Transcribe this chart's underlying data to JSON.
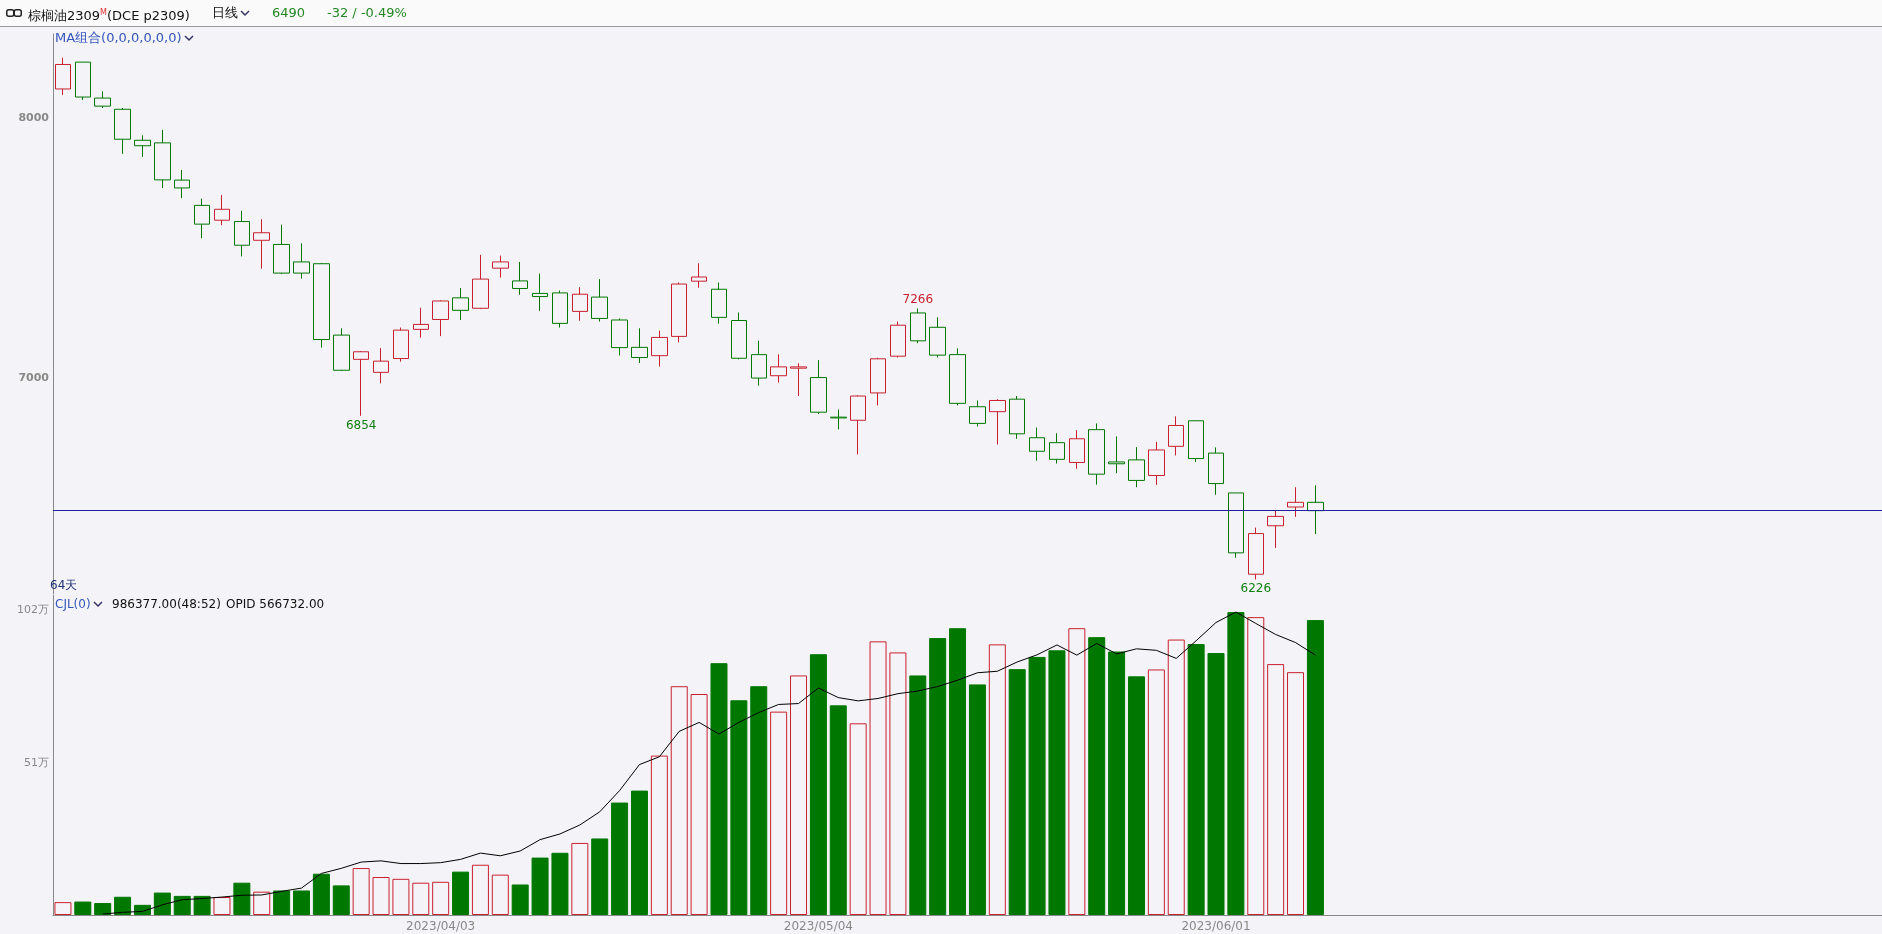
{
  "chart_data": [
    {
      "type": "candlestick",
      "title": "棕榈油2309$^{M}$(DCE p2309)",
      "annotations": [
        "日线",
        "6490",
        "-32 / -0.49%",
        "MA组合(0,0,0,0,0,0)",
        "64天",
        {
          "text": "6854",
          "y": 6854
        },
        {
          "text": "7266",
          "y": 7266
        },
        {
          "text": "6226",
          "y": 6226
        }
      ],
      "categories": [
        null,
        null,
        null,
        null,
        null,
        null,
        null,
        null,
        null,
        null,
        null,
        null,
        null,
        null,
        null,
        null,
        null,
        null,
        null,
        "2023/04/03",
        null,
        null,
        null,
        null,
        null,
        null,
        null,
        null,
        null,
        null,
        null,
        null,
        null,
        null,
        null,
        null,
        null,
        null,
        "2023/05/04",
        null,
        null,
        null,
        null,
        null,
        null,
        null,
        null,
        null,
        null,
        null,
        null,
        null,
        null,
        null,
        null,
        null,
        null,
        null,
        "2023/06/01",
        null,
        null,
        null,
        null,
        null
      ],
      "ohlc": [
        [
          8109,
          8229,
          8086,
          8203
        ],
        [
          8212,
          8212,
          8067,
          8078
        ],
        [
          8074,
          8100,
          8036,
          8043
        ],
        [
          8031,
          8036,
          7860,
          7916
        ],
        [
          7912,
          7931,
          7848,
          7891
        ],
        [
          7902,
          7952,
          7729,
          7760
        ],
        [
          7759,
          7798,
          7690,
          7729
        ],
        [
          7662,
          7688,
          7536,
          7590
        ],
        [
          7605,
          7702,
          7586,
          7647
        ],
        [
          7600,
          7641,
          7466,
          7509
        ],
        [
          7528,
          7609,
          7419,
          7557
        ],
        [
          7512,
          7588,
          7398,
          7402
        ],
        [
          7445,
          7516,
          7381,
          7402
        ],
        [
          7438,
          7441,
          7116,
          7147
        ],
        [
          7164,
          7190,
          7026,
          7029
        ],
        [
          7071,
          7103,
          6854,
          7100
        ],
        [
          7021,
          7114,
          6979,
          7064
        ],
        [
          7074,
          7193,
          7062,
          7183
        ],
        [
          7186,
          7269,
          7154,
          7205
        ],
        [
          7224,
          7298,
          7160,
          7295
        ],
        [
          7307,
          7345,
          7222,
          7259
        ],
        [
          7267,
          7472,
          7264,
          7379
        ],
        [
          7421,
          7469,
          7385,
          7445
        ],
        [
          7372,
          7445,
          7319,
          7343
        ],
        [
          7324,
          7400,
          7257,
          7312
        ],
        [
          7326,
          7335,
          7193,
          7209
        ],
        [
          7255,
          7348,
          7219,
          7321
        ],
        [
          7310,
          7379,
          7216,
          7228
        ],
        [
          7222,
          7228,
          7086,
          7116
        ],
        [
          7117,
          7190,
          7057,
          7078
        ],
        [
          7085,
          7181,
          7043,
          7155
        ],
        [
          7159,
          7366,
          7136,
          7360
        ],
        [
          7371,
          7440,
          7346,
          7387
        ],
        [
          7340,
          7366,
          7208,
          7232
        ],
        [
          7220,
          7251,
          7071,
          7075
        ],
        [
          7089,
          7142,
          6970,
          6999
        ],
        [
          7008,
          7090,
          6982,
          7042
        ],
        [
          7037,
          7056,
          6930,
          7042
        ],
        [
          7001,
          7068,
          6861,
          6868
        ],
        [
          6849,
          6878,
          6802,
          6846
        ],
        [
          6837,
          6933,
          6706,
          6930
        ],
        [
          6942,
          7077,
          6894,
          7073
        ],
        [
          7083,
          7216,
          7078,
          7202
        ],
        [
          7249,
          7266,
          7133,
          7142
        ],
        [
          7194,
          7232,
          7078,
          7087
        ],
        [
          7089,
          7113,
          6894,
          6902
        ],
        [
          6889,
          6913,
          6813,
          6825
        ],
        [
          6870,
          6918,
          6744,
          6913
        ],
        [
          6918,
          6930,
          6766,
          6785
        ],
        [
          6770,
          6809,
          6682,
          6718
        ],
        [
          6751,
          6787,
          6671,
          6687
        ],
        [
          6675,
          6799,
          6651,
          6766
        ],
        [
          6801,
          6825,
          6590,
          6630
        ],
        [
          6677,
          6775,
          6634,
          6670
        ],
        [
          6685,
          6734,
          6580,
          6606
        ],
        [
          6625,
          6754,
          6589,
          6723
        ],
        [
          6737,
          6852,
          6702,
          6817
        ],
        [
          6835,
          6835,
          6677,
          6690
        ],
        [
          6711,
          6733,
          6551,
          6594
        ],
        [
          6558,
          6558,
          6309,
          6328
        ],
        [
          6246,
          6425,
          6226,
          6402
        ],
        [
          6432,
          6493,
          6347,
          6468
        ],
        [
          6504,
          6580,
          6466,
          6522
        ],
        [
          6522,
          6587,
          6400,
          6490
        ]
      ],
      "colors": [
        "#c8202e",
        "#007800",
        "#007800",
        "#007800",
        "#007800",
        "#007800",
        "#007800",
        "#007800",
        "#c8202e",
        "#007800",
        "#c8202e",
        "#007800",
        "#007800",
        "#007800",
        "#007800",
        "#c8202e",
        "#c8202e",
        "#c8202e",
        "#c8202e",
        "#c8202e",
        "#007800",
        "#c8202e",
        "#c8202e",
        "#007800",
        "#007800",
        "#007800",
        "#c8202e",
        "#007800",
        "#007800",
        "#007800",
        "#c8202e",
        "#c8202e",
        "#c8202e",
        "#007800",
        "#007800",
        "#007800",
        "#c8202e",
        "#c8202e",
        "#007800",
        "#007800",
        "#c8202e",
        "#c8202e",
        "#c8202e",
        "#007800",
        "#007800",
        "#007800",
        "#007800",
        "#c8202e",
        "#007800",
        "#007800",
        "#007800",
        "#c8202e",
        "#007800",
        "#007800",
        "#007800",
        "#c8202e",
        "#c8202e",
        "#007800",
        "#007800",
        "#007800",
        "#c8202e",
        "#c8202e",
        "#c8202e",
        "#007800"
      ],
      "ylim": [
        6170,
        8320
      ],
      "yticks": [
        7000,
        8000
      ],
      "ref_lines": [
        {
          "axis": "y",
          "value": 6490,
          "color": "#2020a0"
        }
      ],
      "tick_labels": "y"
    },
    {
      "type": "bar",
      "annotations": [
        "CJL(0)",
        "986377.00(48:52)",
        "OPID 566732.00"
      ],
      "categories": [
        null,
        null,
        null,
        null,
        null,
        null,
        null,
        null,
        null,
        null,
        null,
        null,
        null,
        null,
        null,
        null,
        null,
        null,
        null,
        "2023/04/03",
        null,
        null,
        null,
        null,
        null,
        null,
        null,
        null,
        null,
        null,
        null,
        null,
        null,
        null,
        null,
        null,
        null,
        null,
        "2023/05/04",
        null,
        null,
        null,
        null,
        null,
        null,
        null,
        null,
        null,
        null,
        null,
        null,
        null,
        null,
        null,
        null,
        null,
        null,
        null,
        "2023/06/01",
        null,
        null,
        null,
        null,
        null
      ],
      "series": [
        {
          "type": "bar",
          "colors": [
            "#c8202e",
            "#007800",
            "#007800",
            "#007800",
            "#007800",
            "#007800",
            "#007800",
            "#007800",
            "#c8202e",
            "#007800",
            "#c8202e",
            "#007800",
            "#007800",
            "#007800",
            "#007800",
            "#c8202e",
            "#c8202e",
            "#c8202e",
            "#c8202e",
            "#c8202e",
            "#007800",
            "#c8202e",
            "#c8202e",
            "#007800",
            "#007800",
            "#007800",
            "#c8202e",
            "#007800",
            "#007800",
            "#007800",
            "#c8202e",
            "#c8202e",
            "#c8202e",
            "#007800",
            "#007800",
            "#007800",
            "#c8202e",
            "#c8202e",
            "#007800",
            "#007800",
            "#c8202e",
            "#c8202e",
            "#c8202e",
            "#007800",
            "#007800",
            "#007800",
            "#007800",
            "#c8202e",
            "#007800",
            "#007800",
            "#007800",
            "#c8202e",
            "#007800",
            "#007800",
            "#007800",
            "#c8202e",
            "#c8202e",
            "#007800",
            "#007800",
            "#007800",
            "#c8202e",
            "#c8202e",
            "#c8202e",
            "#007800"
          ],
          "values": [
            4.3,
            4.5,
            4.0,
            6.1,
            3.4,
            7.5,
            6.4,
            6.4,
            6.0,
            10.8,
            7.8,
            8.2,
            8.2,
            13.8,
            9.9,
            15.7,
            12.7,
            12.1,
            10.8,
            11.1,
            14.5,
            16.8,
            13.5,
            10.2,
            19.2,
            20.8,
            24.1,
            25.6,
            37.6,
            41.6,
            53.3,
            76.5,
            73.9,
            84.2,
            71.8,
            76.5,
            68.0,
            80.1,
            87.2,
            70.1,
            64.1,
            91.5,
            87.8,
            80.1,
            92.6,
            95.9,
            77.1,
            90.5,
            82.2,
            86.3,
            88.5,
            95.9,
            92.9,
            88.1,
            79.8,
            82.1,
            92.1,
            90.6,
            87.6,
            101.3,
            99.6,
            83.9,
            81.2,
            98.6
          ]
        },
        {
          "type": "line",
          "color": "#000000",
          "values": [
            null,
            null,
            0.3,
            0.9,
            1.2,
            3.4,
            5.1,
            5.5,
            6.0,
            6.6,
            6.7,
            7.9,
            9.0,
            13.9,
            15.6,
            17.7,
            18.1,
            17.2,
            17.2,
            17.5,
            18.6,
            20.7,
            19.8,
            21.4,
            25.2,
            27.1,
            30.1,
            34.5,
            41.6,
            50.3,
            52.9,
            61.4,
            64.4,
            60.5,
            64.4,
            67.7,
            70.4,
            70.7,
            75.9,
            72.7,
            71.6,
            72.4,
            74.0,
            74.9,
            76.4,
            78.5,
            81.0,
            81.5,
            84.6,
            87.0,
            90.3,
            86.9,
            90.8,
            87.3,
            89.0,
            88.5,
            85.8,
            91.7,
            97.8,
            101.3,
            97.5,
            93.8,
            91.1,
            86.9
          ]
        }
      ],
      "ylim": [
        0,
        107
      ],
      "yticks": [
        {
          "value": 51,
          "label": "51万"
        },
        {
          "value": 102,
          "label": "102万"
        }
      ]
    }
  ]
}
